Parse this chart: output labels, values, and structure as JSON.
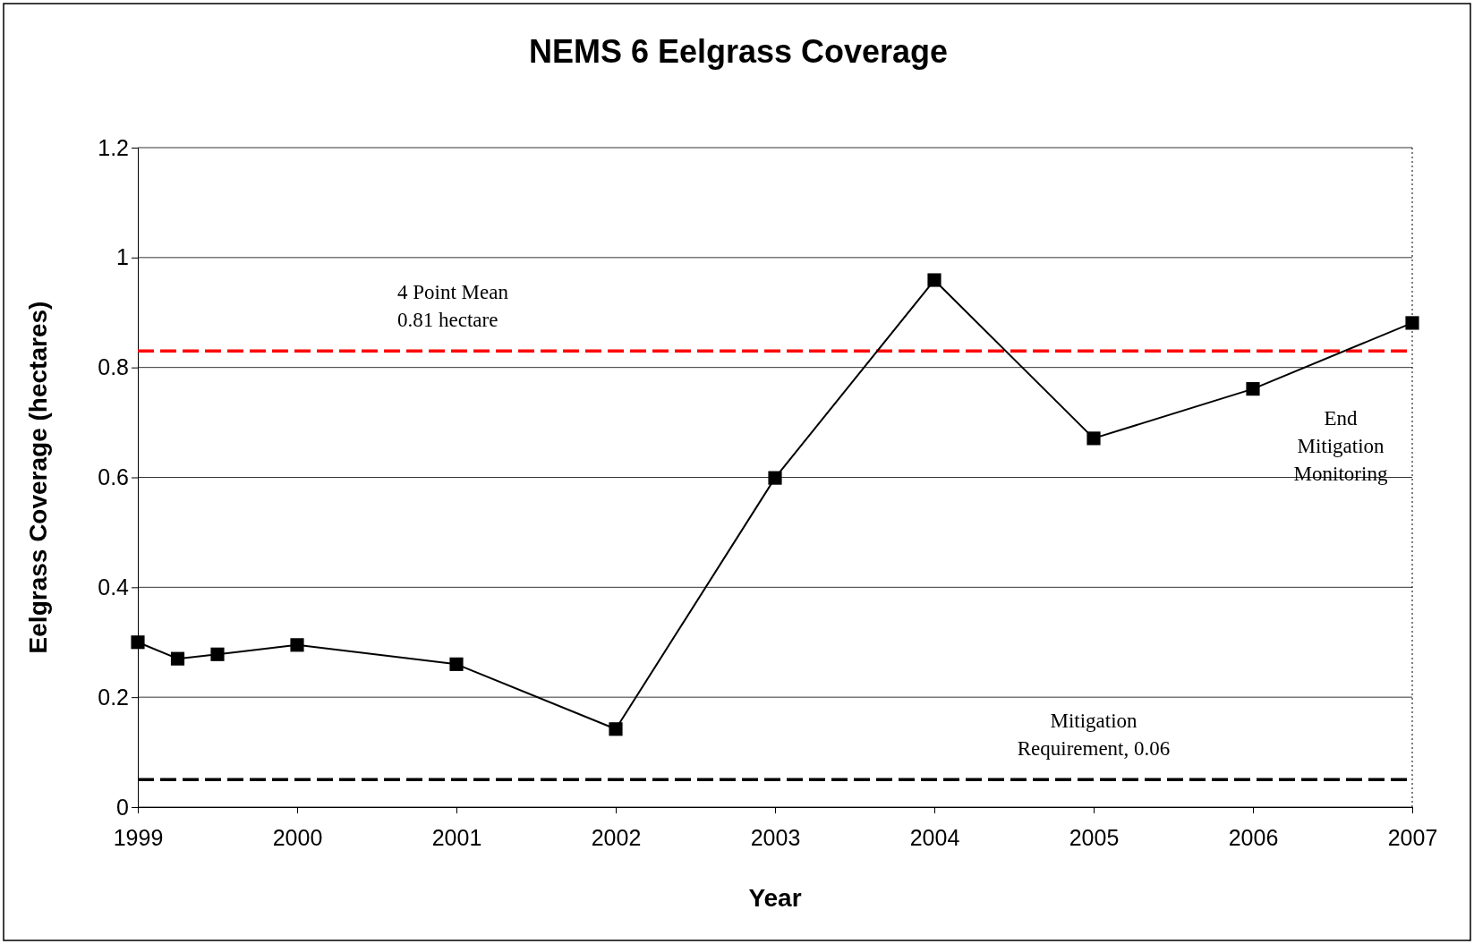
{
  "chart_data": {
    "type": "line",
    "title": "NEMS 6 Eelgrass Coverage",
    "xlabel": "Year",
    "ylabel": "Eelgrass Coverage (hectares)",
    "x": [
      1999,
      1999.25,
      1999.5,
      2000,
      2001,
      2002,
      2003,
      2004,
      2005,
      2006,
      2007
    ],
    "series": [
      {
        "color": "#000000",
        "values": [
          0.3,
          0.27,
          0.278,
          0.295,
          0.26,
          0.142,
          0.599,
          0.959,
          0.671,
          0.761,
          0.881
        ]
      }
    ],
    "xlim": [
      1999,
      2007
    ],
    "xticks": [
      1999,
      2000,
      2001,
      2002,
      2003,
      2004,
      2005,
      2006,
      2007
    ],
    "ylim": [
      0,
      1.2
    ],
    "yticks": [
      0,
      0.2,
      0.4,
      0.6,
      0.8,
      1,
      1.2
    ],
    "grid": "y",
    "marker": "square",
    "line_style": "solid",
    "ref_lines": [
      {
        "axis": "y",
        "value": 0.83,
        "label": "4 Point Mean\n0.81 hectare",
        "color": "#ff0000",
        "line_style": "dashed"
      },
      {
        "axis": "y",
        "value": 0.05,
        "label": "Mitigation\nRequirement, 0.06",
        "color": "#000000",
        "line_style": "dashed"
      },
      {
        "axis": "x",
        "value": 2007,
        "label": "End\nMitigation\nMonitoring",
        "color": "#000000",
        "line_style": "dotted"
      }
    ]
  }
}
